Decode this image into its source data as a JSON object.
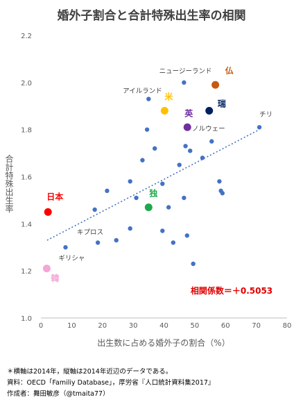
{
  "chart_data": {
    "type": "scatter",
    "title": "婚外子割合と合計特殊出生率の相関",
    "xlabel": "出生数に占める婚外子の割合（%）",
    "ylabel": "合計特殊出生率",
    "xlim": [
      0,
      80
    ],
    "ylim": [
      1.0,
      2.2
    ],
    "xticks": [
      "0",
      "10",
      "20",
      "30",
      "40",
      "50",
      "60",
      "70",
      "80"
    ],
    "yticks": [
      "1.0",
      "1.2",
      "1.4",
      "1.6",
      "1.8",
      "2.0",
      "2.2"
    ],
    "grid": false,
    "point_color": "#4472c4",
    "trendline": {
      "from": [
        2,
        1.33
      ],
      "to": [
        71,
        1.8
      ],
      "color": "#4472c4",
      "style": "dotted"
    },
    "points": [
      {
        "x": 8,
        "y": 1.3
      },
      {
        "x": 17.5,
        "y": 1.46
      },
      {
        "x": 18.5,
        "y": 1.32
      },
      {
        "x": 21.5,
        "y": 1.54
      },
      {
        "x": 24.5,
        "y": 1.33
      },
      {
        "x": 29,
        "y": 1.58
      },
      {
        "x": 29,
        "y": 1.38
      },
      {
        "x": 31,
        "y": 1.51
      },
      {
        "x": 33,
        "y": 1.67
      },
      {
        "x": 34.5,
        "y": 1.8
      },
      {
        "x": 35,
        "y": 1.93
      },
      {
        "x": 37,
        "y": 1.72
      },
      {
        "x": 39.5,
        "y": 1.37
      },
      {
        "x": 39.5,
        "y": 1.57
      },
      {
        "x": 41.5,
        "y": 1.47
      },
      {
        "x": 43,
        "y": 1.32
      },
      {
        "x": 45,
        "y": 1.65
      },
      {
        "x": 46.5,
        "y": 1.51
      },
      {
        "x": 47,
        "y": 1.73
      },
      {
        "x": 47.5,
        "y": 1.35
      },
      {
        "x": 46.5,
        "y": 2.0
      },
      {
        "x": 48.5,
        "y": 1.71
      },
      {
        "x": 49.5,
        "y": 1.23
      },
      {
        "x": 52.5,
        "y": 1.68
      },
      {
        "x": 55.5,
        "y": 1.75
      },
      {
        "x": 58,
        "y": 1.58
      },
      {
        "x": 58.5,
        "y": 1.54
      },
      {
        "x": 59,
        "y": 1.53
      },
      {
        "x": 71,
        "y": 1.81
      }
    ],
    "highlighted_points": [
      {
        "label": "日本",
        "x": 2.3,
        "y": 1.45,
        "color": "#ff0000"
      },
      {
        "label": "韓",
        "x": 1.9,
        "y": 1.21,
        "color": "#f4a6d7"
      },
      {
        "label": "独",
        "x": 35,
        "y": 1.47,
        "color": "#1fa84a"
      },
      {
        "label": "米",
        "x": 40.2,
        "y": 1.88,
        "color": "#ffc000"
      },
      {
        "label": "英",
        "x": 47.6,
        "y": 1.81,
        "color": "#7030a0"
      },
      {
        "label": "瑞",
        "x": 54.7,
        "y": 1.88,
        "color": "#002060"
      },
      {
        "label": "仏",
        "x": 56.7,
        "y": 1.99,
        "color": "#c55a11"
      }
    ],
    "annotations": [
      {
        "text": "ニュージーランド",
        "x": 47,
        "y": 2.04
      },
      {
        "text": "アイルランド",
        "x": 33,
        "y": 1.955
      },
      {
        "text": "チリ",
        "x": 71,
        "y": 1.855
      },
      {
        "text": "ノルウェー",
        "x": 54.5,
        "y": 1.795
      },
      {
        "text": "キプロス",
        "x": 16,
        "y": 1.355
      },
      {
        "text": "ギリシャ",
        "x": 10,
        "y": 1.245
      }
    ],
    "correlation_label": "相関係数＝＋0.5053"
  },
  "notes": [
    "＊横軸は2014年，縦軸は2014年近辺のデータである。",
    "資料：OECD「Familiy Database」，厚労省『人口統計資料集2017』",
    "作成者：舞田敏彦（@tmaita77）"
  ]
}
